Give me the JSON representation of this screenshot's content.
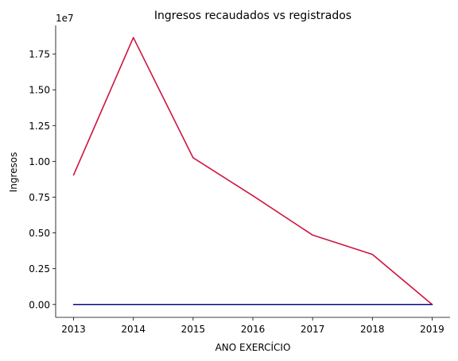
{
  "chart_data": {
    "type": "line",
    "title": "Ingresos recaudados vs registrados",
    "xlabel": "ANO EXERCÍCIO",
    "ylabel": "Ingresos",
    "y_offset_label": "1e7",
    "x": [
      2013,
      2014,
      2015,
      2016,
      2017,
      2018,
      2019
    ],
    "xlim": [
      2012.7,
      2019.3
    ],
    "ylim": [
      -0.09,
      1.95
    ],
    "y_scale_factor": 10000000,
    "yticks": [
      0.0,
      0.25,
      0.5,
      0.75,
      1.0,
      1.25,
      1.5,
      1.75
    ],
    "ytick_labels": [
      "0.00",
      "0.25",
      "0.50",
      "0.75",
      "1.00",
      "1.25",
      "1.50",
      "1.75"
    ],
    "xtick_labels": [
      "2013",
      "2014",
      "2015",
      "2016",
      "2017",
      "2018",
      "2019"
    ],
    "grid": false,
    "series": [
      {
        "color": "#d0143f",
        "values": [
          0.905,
          1.865,
          1.025,
          0.76,
          0.485,
          0.35,
          0.0
        ]
      },
      {
        "color": "#0a0a80",
        "values": [
          0.0,
          0.0,
          0.0,
          0.0,
          0.0,
          0.0,
          0.0
        ]
      }
    ]
  }
}
